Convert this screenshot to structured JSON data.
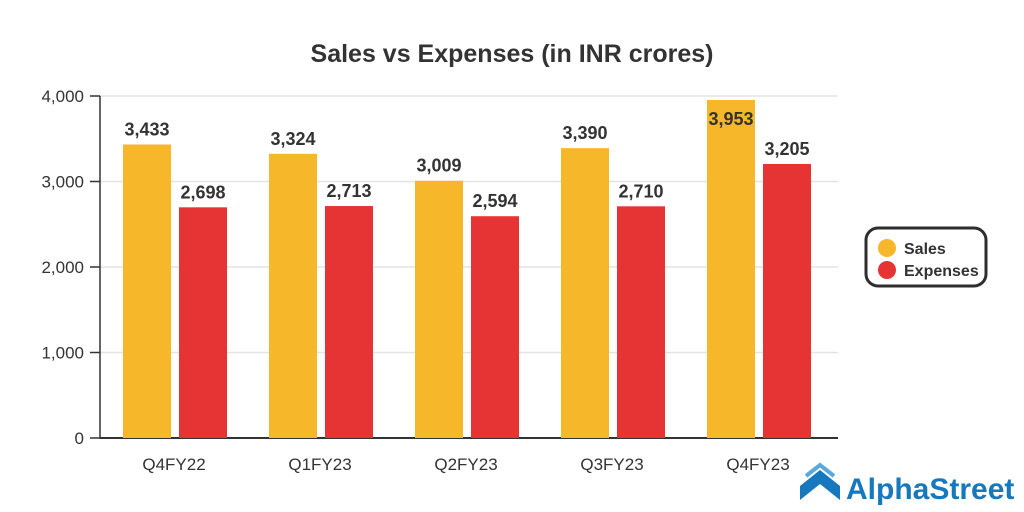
{
  "chart_data": {
    "type": "bar",
    "title": "Sales vs Expenses (in INR crores)",
    "xlabel": "",
    "ylabel": "",
    "categories": [
      "Q4FY22",
      "Q1FY23",
      "Q2FY23",
      "Q3FY23",
      "Q4FY23"
    ],
    "series": [
      {
        "name": "Sales",
        "color": "#f6b72a",
        "values": [
          3433,
          3324,
          3009,
          3390,
          3953
        ],
        "labels": [
          "3,433",
          "3,324",
          "3,009",
          "3,390",
          "3,953"
        ]
      },
      {
        "name": "Expenses",
        "color": "#e63434",
        "values": [
          2698,
          2713,
          2594,
          2710,
          3205
        ],
        "labels": [
          "2,698",
          "2,713",
          "2,594",
          "2,710",
          "3,205"
        ]
      }
    ],
    "ylim": [
      0,
      4000
    ],
    "yticks": [
      0,
      1000,
      2000,
      3000,
      4000
    ],
    "ytick_labels": [
      "0",
      "1,000",
      "2,000",
      "3,000",
      "4,000"
    ],
    "grid": true,
    "legend_position": "right"
  },
  "branding": {
    "logo_text": "AlphaStreet"
  }
}
